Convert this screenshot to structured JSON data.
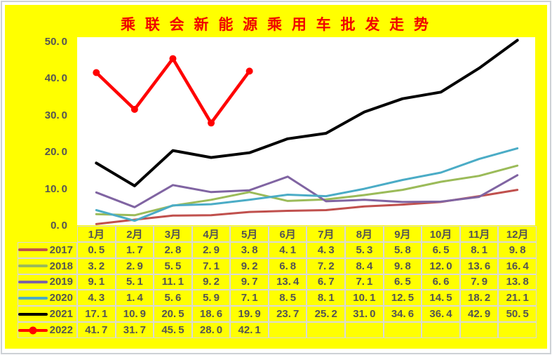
{
  "page": {
    "title": "乘 联 会 新 能 源 乘 用 车 批 发 走 势",
    "title_color": "#F00000",
    "background_color": "#FFFF00",
    "plot_background_color": "#FFFFFF",
    "text_color": "#545454",
    "table_border_color": "#D9D9D9"
  },
  "chart_data": {
    "type": "line",
    "title": "乘联会新能源乘用车批发走势",
    "categories": [
      "1月",
      "2月",
      "3月",
      "4月",
      "5月",
      "6月",
      "7月",
      "8月",
      "9月",
      "10月",
      "11月",
      "12月"
    ],
    "series": [
      {
        "name": "2017",
        "color": "#C0504D",
        "marker": "none",
        "values": [
          0.5,
          1.7,
          2.8,
          2.9,
          3.8,
          4.1,
          4.3,
          5.3,
          5.8,
          6.5,
          8.1,
          9.8
        ]
      },
      {
        "name": "2018",
        "color": "#9BBB59",
        "marker": "none",
        "values": [
          3.2,
          2.9,
          5.5,
          7.1,
          9.2,
          6.8,
          7.2,
          8.4,
          9.8,
          12.0,
          13.6,
          16.4
        ]
      },
      {
        "name": "2019",
        "color": "#8064A2",
        "marker": "none",
        "values": [
          9.1,
          5.1,
          11.1,
          9.2,
          9.7,
          13.4,
          6.7,
          7.1,
          6.5,
          6.6,
          7.9,
          13.8
        ]
      },
      {
        "name": "2020",
        "color": "#4BACC6",
        "marker": "none",
        "values": [
          4.3,
          1.4,
          5.6,
          5.9,
          7.1,
          8.5,
          8.1,
          10.1,
          12.5,
          14.5,
          18.2,
          21.1
        ]
      },
      {
        "name": "2021",
        "color": "#000000",
        "marker": "none",
        "values": [
          17.1,
          10.9,
          20.5,
          18.6,
          19.9,
          23.7,
          25.2,
          31.0,
          34.6,
          36.4,
          42.9,
          50.5
        ]
      },
      {
        "name": "2022",
        "color": "#FF0000",
        "marker": "circle",
        "values": [
          41.7,
          31.7,
          45.5,
          28.0,
          42.1
        ]
      }
    ],
    "ylim": [
      0,
      50
    ],
    "yticks": [
      50,
      40,
      30,
      20,
      10,
      0
    ],
    "grid": false,
    "legend_position": "table-left-column"
  }
}
